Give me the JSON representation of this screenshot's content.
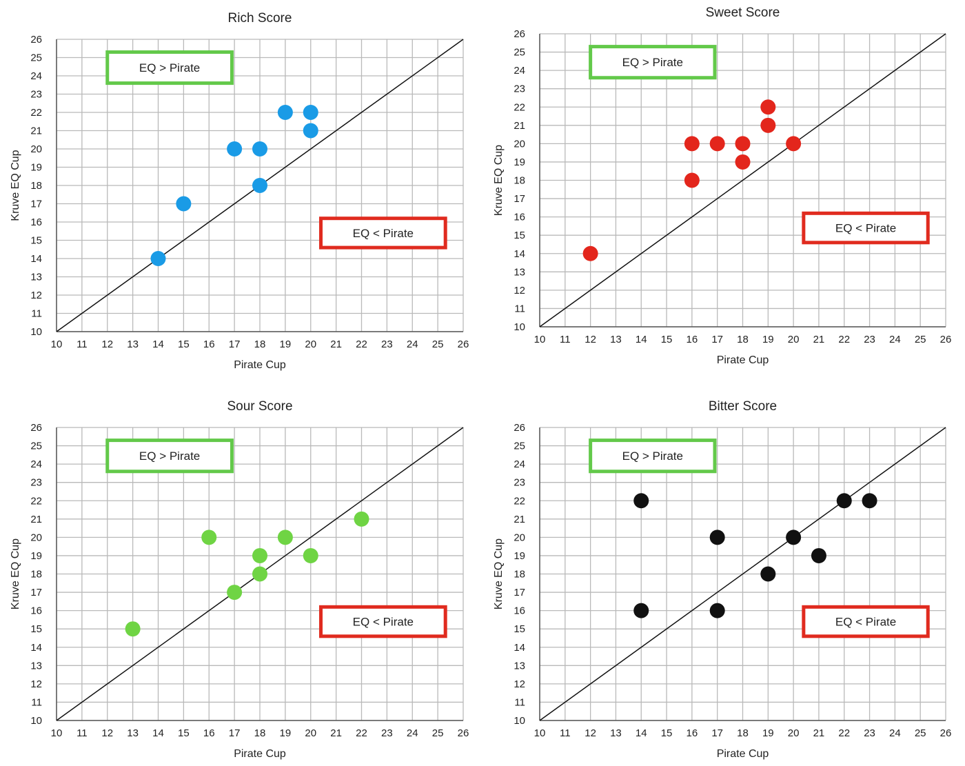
{
  "chart_data": [
    {
      "type": "scatter",
      "title": "Rich Score",
      "xlabel": "Pirate Cup",
      "ylabel": "Kruve EQ Cup",
      "xlim": [
        10,
        26
      ],
      "ylim": [
        10,
        26
      ],
      "grid": true,
      "reference_line": "y = x",
      "color": "#1a9be6",
      "annotations": [
        {
          "text": "EQ > Pirate",
          "color": "#63c94a"
        },
        {
          "text": "EQ < Pirate",
          "color": "#e02b1f"
        }
      ],
      "points": [
        {
          "x": 14,
          "y": 14
        },
        {
          "x": 15,
          "y": 17
        },
        {
          "x": 17,
          "y": 20
        },
        {
          "x": 18,
          "y": 20
        },
        {
          "x": 18,
          "y": 18
        },
        {
          "x": 19,
          "y": 22
        },
        {
          "x": 20,
          "y": 22
        },
        {
          "x": 20,
          "y": 21
        }
      ]
    },
    {
      "type": "scatter",
      "title": "Sweet Score",
      "xlabel": "Pirate Cup",
      "ylabel": "Kruve EQ Cup",
      "xlim": [
        10,
        26
      ],
      "ylim": [
        10,
        26
      ],
      "grid": true,
      "reference_line": "y = x",
      "color": "#e3261c",
      "annotations": [
        {
          "text": "EQ > Pirate",
          "color": "#63c94a"
        },
        {
          "text": "EQ < Pirate",
          "color": "#e02b1f"
        }
      ],
      "points": [
        {
          "x": 12,
          "y": 14
        },
        {
          "x": 16,
          "y": 20
        },
        {
          "x": 16,
          "y": 18
        },
        {
          "x": 17,
          "y": 20
        },
        {
          "x": 18,
          "y": 20
        },
        {
          "x": 18,
          "y": 19
        },
        {
          "x": 19,
          "y": 22
        },
        {
          "x": 19,
          "y": 21
        },
        {
          "x": 20,
          "y": 20
        }
      ]
    },
    {
      "type": "scatter",
      "title": "Sour Score",
      "xlabel": "Pirate Cup",
      "ylabel": "Kruve EQ Cup",
      "xlim": [
        10,
        26
      ],
      "ylim": [
        10,
        26
      ],
      "grid": true,
      "reference_line": "y = x",
      "color": "#6fd444",
      "annotations": [
        {
          "text": "EQ > Pirate",
          "color": "#63c94a"
        },
        {
          "text": "EQ < Pirate",
          "color": "#e02b1f"
        }
      ],
      "points": [
        {
          "x": 13,
          "y": 15
        },
        {
          "x": 16,
          "y": 20
        },
        {
          "x": 17,
          "y": 17
        },
        {
          "x": 18,
          "y": 19
        },
        {
          "x": 18,
          "y": 18
        },
        {
          "x": 19,
          "y": 20
        },
        {
          "x": 20,
          "y": 19
        },
        {
          "x": 22,
          "y": 21
        }
      ]
    },
    {
      "type": "scatter",
      "title": "Bitter Score",
      "xlabel": "Pirate Cup",
      "ylabel": "Kruve EQ Cup",
      "xlim": [
        10,
        26
      ],
      "ylim": [
        10,
        26
      ],
      "grid": true,
      "reference_line": "y = x",
      "color": "#111111",
      "annotations": [
        {
          "text": "EQ > Pirate",
          "color": "#63c94a"
        },
        {
          "text": "EQ < Pirate",
          "color": "#e02b1f"
        }
      ],
      "points": [
        {
          "x": 14,
          "y": 22
        },
        {
          "x": 14,
          "y": 16
        },
        {
          "x": 17,
          "y": 20
        },
        {
          "x": 17,
          "y": 16
        },
        {
          "x": 19,
          "y": 18
        },
        {
          "x": 20,
          "y": 20
        },
        {
          "x": 21,
          "y": 19
        },
        {
          "x": 22,
          "y": 22
        },
        {
          "x": 23,
          "y": 22
        }
      ]
    }
  ]
}
